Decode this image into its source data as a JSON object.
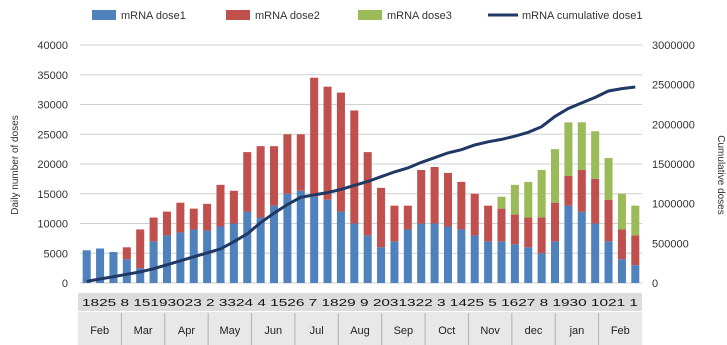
{
  "chart_data": {
    "type": "bar",
    "xlabel": "",
    "ylabel": "Daily number of doses",
    "y2label": "Cumulative doses",
    "ylim": [
      0,
      40000
    ],
    "y2lim": [
      0,
      3000000
    ],
    "yticks": [
      "40000",
      "35000",
      "30000",
      "25000",
      "20000",
      "15000",
      "10000",
      "5000",
      "0"
    ],
    "y2ticks": [
      "3000000",
      "2500000",
      "2000000",
      "1500000",
      "1000000",
      "500000",
      "0"
    ],
    "legend": "top",
    "grid": true,
    "months": [
      "Feb",
      "Mar",
      "Apr",
      "May",
      "Jun",
      "Jul",
      "Aug",
      "Sep",
      "Oct",
      "Nov",
      "dec",
      "jan",
      "Feb"
    ],
    "day_labels": "1825 8 15193023 2 3324 4 1526 7 1829 9 2031322 3 1425 5 1627 8 1930 1021 1",
    "series": [
      {
        "name": "mRNA dose1",
        "color": "#4f81bd",
        "values": [
          5500,
          5800,
          5200,
          4000,
          2500,
          7000,
          8000,
          8500,
          9000,
          8800,
          9500,
          10000,
          12000,
          11000,
          13000,
          15000,
          15500,
          14500,
          14000,
          12000,
          10000,
          8000,
          6000,
          7000,
          9000,
          10000,
          10000,
          9500,
          9000,
          8000,
          7000,
          7000,
          6500,
          6000,
          5000,
          7000,
          13000,
          12000,
          10000,
          7000,
          4000,
          3000
        ]
      },
      {
        "name": "mRNA dose2",
        "color": "#c0504d",
        "values": [
          0,
          0,
          0,
          2000,
          6500,
          4000,
          4000,
          5000,
          3500,
          4500,
          7000,
          5500,
          10000,
          12000,
          10000,
          10000,
          9500,
          20000,
          19000,
          20000,
          19000,
          14000,
          10000,
          6000,
          4000,
          9000,
          9500,
          9000,
          8000,
          7000,
          6000,
          5500,
          5000,
          5000,
          6000,
          6500,
          5000,
          7000,
          7500,
          7000,
          5000,
          5000
        ]
      },
      {
        "name": "mRNA dose3",
        "color": "#9bbb59",
        "values": [
          0,
          0,
          0,
          0,
          0,
          0,
          0,
          0,
          0,
          0,
          0,
          0,
          0,
          0,
          0,
          0,
          0,
          0,
          0,
          0,
          0,
          0,
          0,
          0,
          0,
          0,
          0,
          0,
          0,
          0,
          0,
          2000,
          5000,
          6000,
          8000,
          9000,
          9000,
          8000,
          8000,
          7000,
          6000,
          5000
        ]
      },
      {
        "name": "mRNA cumulative dose1",
        "color": "#1f3864",
        "values": [
          20000,
          50000,
          80000,
          110000,
          140000,
          180000,
          230000,
          280000,
          330000,
          380000,
          430000,
          520000,
          620000,
          760000,
          880000,
          990000,
          1080000,
          1110000,
          1140000,
          1180000,
          1230000,
          1280000,
          1340000,
          1400000,
          1450000,
          1520000,
          1580000,
          1640000,
          1680000,
          1740000,
          1780000,
          1810000,
          1850000,
          1900000,
          1970000,
          2100000,
          2200000,
          2270000,
          2340000,
          2420000,
          2450000,
          2470000
        ]
      }
    ]
  }
}
